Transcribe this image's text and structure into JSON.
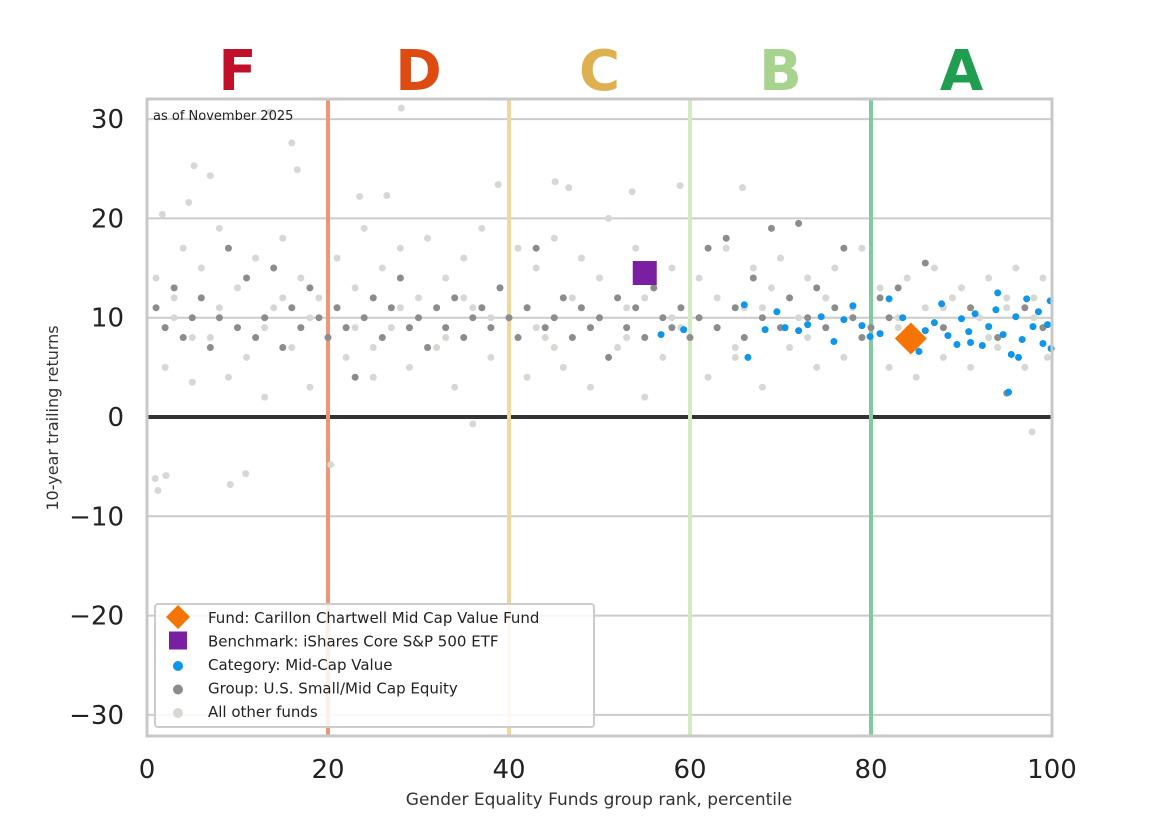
{
  "chart_data": {
    "type": "scatter",
    "title": "",
    "xlabel": "Gender Equality Funds group rank, percentile",
    "ylabel": "10-year trailing returns",
    "xlim": [
      0,
      100
    ],
    "ylim": [
      -32,
      32
    ],
    "xticks": [
      0,
      20,
      40,
      60,
      80,
      100
    ],
    "yticks": [
      -30,
      -20,
      -10,
      0,
      10,
      20,
      30
    ],
    "grid": true,
    "annotation": "as of November 2025",
    "legend_position": "bottom-left",
    "grade_bands": [
      {
        "label": "F",
        "center": 10,
        "color": "#c0102a"
      },
      {
        "label": "D",
        "center": 30,
        "color": "#dd4a12"
      },
      {
        "label": "C",
        "center": 50,
        "color": "#ddb14f"
      },
      {
        "label": "B",
        "center": 70,
        "color": "#a8d38e"
      },
      {
        "label": "A",
        "center": 90,
        "color": "#1f9e4f"
      }
    ],
    "band_lines": [
      {
        "x": 20,
        "color": "#ee9777"
      },
      {
        "x": 40,
        "color": "#f2d79c"
      },
      {
        "x": 60,
        "color": "#d4eac4"
      },
      {
        "x": 80,
        "color": "#7fcb9c"
      }
    ],
    "series": [
      {
        "name": "All other funds",
        "marker": "circle",
        "color": "#d5d9d3",
        "points": [
          [
            0.9,
            -6.2
          ],
          [
            2.1,
            -5.9
          ],
          [
            1.2,
            -7.4
          ],
          [
            9.2,
            -6.8
          ],
          [
            10.9,
            -5.7
          ],
          [
            20.3,
            -4.8
          ],
          [
            36,
            -0.7
          ],
          [
            97.8,
            -1.5
          ],
          [
            28.1,
            31.1
          ],
          [
            13.6,
            30.7
          ],
          [
            16,
            27.6
          ],
          [
            5.2,
            25.3
          ],
          [
            7,
            24.3
          ],
          [
            38.8,
            23.4
          ],
          [
            45.1,
            23.7
          ],
          [
            46.6,
            23.1
          ],
          [
            58.9,
            23.3
          ],
          [
            65.8,
            23.1
          ],
          [
            53.6,
            22.7
          ],
          [
            23.5,
            22.2
          ],
          [
            26.5,
            22.3
          ],
          [
            1.7,
            20.4
          ],
          [
            4.6,
            21.6
          ],
          [
            16.6,
            24.9
          ],
          [
            1,
            14
          ],
          [
            2,
            5
          ],
          [
            3,
            12
          ],
          [
            4,
            17
          ],
          [
            5,
            3.5
          ],
          [
            6,
            15
          ],
          [
            7,
            8
          ],
          [
            8,
            19
          ],
          [
            9,
            4
          ],
          [
            10,
            13
          ],
          [
            11,
            6
          ],
          [
            12,
            16
          ],
          [
            13,
            2
          ],
          [
            14,
            11
          ],
          [
            15,
            18
          ],
          [
            16,
            7
          ],
          [
            17,
            14
          ],
          [
            18,
            3
          ],
          [
            19,
            12
          ],
          [
            21,
            16
          ],
          [
            22,
            6
          ],
          [
            23,
            13
          ],
          [
            24,
            19
          ],
          [
            25,
            4
          ],
          [
            26,
            15
          ],
          [
            27,
            9
          ],
          [
            28,
            17
          ],
          [
            29,
            5
          ],
          [
            30,
            12
          ],
          [
            31,
            18
          ],
          [
            32,
            7
          ],
          [
            33,
            14
          ],
          [
            34,
            3
          ],
          [
            35,
            16
          ],
          [
            36,
            11
          ],
          [
            37,
            19
          ],
          [
            38,
            6
          ],
          [
            39,
            13
          ],
          [
            41,
            17
          ],
          [
            42,
            4
          ],
          [
            43,
            15
          ],
          [
            44,
            8
          ],
          [
            45,
            18
          ],
          [
            46,
            5
          ],
          [
            47,
            12
          ],
          [
            48,
            16
          ],
          [
            49,
            3
          ],
          [
            50,
            14
          ],
          [
            51,
            20
          ],
          [
            52,
            7
          ],
          [
            53,
            11
          ],
          [
            54,
            17
          ],
          [
            55,
            2
          ],
          [
            56,
            13
          ],
          [
            57,
            6
          ],
          [
            58,
            15
          ],
          [
            59,
            9
          ],
          [
            61,
            14
          ],
          [
            62,
            4
          ],
          [
            63,
            12
          ],
          [
            64,
            17
          ],
          [
            65,
            6
          ],
          [
            66,
            11
          ],
          [
            67,
            15
          ],
          [
            68,
            3
          ],
          [
            69,
            13
          ],
          [
            70,
            16
          ],
          [
            71,
            7
          ],
          [
            72,
            10
          ],
          [
            73,
            14
          ],
          [
            74,
            5
          ],
          [
            75,
            12
          ],
          [
            76,
            15
          ],
          [
            77,
            6
          ],
          [
            78,
            11
          ],
          [
            79,
            17
          ],
          [
            81,
            13
          ],
          [
            82,
            5
          ],
          [
            83,
            10
          ],
          [
            84,
            14
          ],
          [
            85,
            4
          ],
          [
            86,
            11
          ],
          [
            87,
            15
          ],
          [
            88,
            6
          ],
          [
            89,
            12
          ],
          [
            90,
            13
          ],
          [
            91,
            5
          ],
          [
            92,
            10
          ],
          [
            93,
            14
          ],
          [
            94,
            7
          ],
          [
            95,
            11
          ],
          [
            96,
            15
          ],
          [
            97,
            5
          ],
          [
            98,
            12
          ],
          [
            99,
            14
          ],
          [
            99.5,
            6
          ],
          [
            3,
            10
          ],
          [
            8,
            11
          ],
          [
            13,
            9
          ],
          [
            18,
            10
          ],
          [
            23,
            9
          ],
          [
            28,
            11
          ],
          [
            33,
            8
          ],
          [
            38,
            10
          ],
          [
            43,
            9
          ],
          [
            48,
            11
          ],
          [
            53,
            8
          ],
          [
            58,
            10
          ],
          [
            63,
            9
          ],
          [
            68,
            11
          ],
          [
            73,
            8
          ],
          [
            78,
            10
          ],
          [
            83,
            9
          ],
          [
            88,
            11
          ],
          [
            93,
            8
          ],
          [
            98,
            10
          ],
          [
            5,
            8
          ],
          [
            15,
            12
          ],
          [
            25,
            7
          ],
          [
            35,
            12
          ],
          [
            45,
            7
          ],
          [
            55,
            12
          ],
          [
            65,
            7
          ],
          [
            75,
            12
          ],
          [
            85,
            7
          ],
          [
            95,
            12
          ]
        ]
      },
      {
        "name": "Group: U.S. Small/Mid Cap Equity",
        "marker": "circle",
        "color": "#8c8c8c",
        "points": [
          [
            1,
            11
          ],
          [
            2,
            9
          ],
          [
            3,
            13
          ],
          [
            4,
            8
          ],
          [
            5,
            10
          ],
          [
            6,
            12
          ],
          [
            7,
            7
          ],
          [
            8,
            10
          ],
          [
            9,
            17
          ],
          [
            10,
            9
          ],
          [
            11,
            14
          ],
          [
            12,
            8
          ],
          [
            13,
            10
          ],
          [
            14,
            15
          ],
          [
            15,
            7
          ],
          [
            16,
            11
          ],
          [
            17,
            9
          ],
          [
            18,
            13
          ],
          [
            19,
            10
          ],
          [
            20,
            8
          ],
          [
            21,
            11
          ],
          [
            22,
            9
          ],
          [
            23,
            4
          ],
          [
            24,
            10
          ],
          [
            25,
            12
          ],
          [
            26,
            8
          ],
          [
            27,
            11
          ],
          [
            28,
            14
          ],
          [
            29,
            9
          ],
          [
            30,
            10
          ],
          [
            31,
            7
          ],
          [
            32,
            11
          ],
          [
            33,
            9
          ],
          [
            34,
            12
          ],
          [
            35,
            8
          ],
          [
            36,
            10
          ],
          [
            37,
            11
          ],
          [
            38,
            9
          ],
          [
            39,
            13
          ],
          [
            40,
            10
          ],
          [
            41,
            8
          ],
          [
            42,
            11
          ],
          [
            43,
            17
          ],
          [
            44,
            9
          ],
          [
            45,
            10
          ],
          [
            46,
            12
          ],
          [
            47,
            8
          ],
          [
            48,
            11
          ],
          [
            49,
            9
          ],
          [
            50,
            10
          ],
          [
            51,
            6
          ],
          [
            52,
            12
          ],
          [
            53,
            9
          ],
          [
            54,
            11
          ],
          [
            55,
            8
          ],
          [
            56,
            13
          ],
          [
            57,
            10
          ],
          [
            58,
            9
          ],
          [
            59,
            11
          ],
          [
            60,
            8
          ],
          [
            61,
            10
          ],
          [
            62,
            17
          ],
          [
            63,
            9
          ],
          [
            64,
            18
          ],
          [
            65,
            11
          ],
          [
            66,
            8
          ],
          [
            67,
            14
          ],
          [
            68,
            10
          ],
          [
            69,
            19
          ],
          [
            70,
            9
          ],
          [
            71,
            12
          ],
          [
            72,
            19.5
          ],
          [
            73,
            10
          ],
          [
            74,
            13
          ],
          [
            75,
            9
          ],
          [
            76,
            11
          ],
          [
            77,
            17
          ],
          [
            78,
            10
          ],
          [
            79,
            8
          ],
          [
            80,
            9
          ],
          [
            81,
            12
          ],
          [
            82,
            10
          ],
          [
            83,
            13
          ],
          [
            86,
            15.5
          ],
          [
            88,
            9
          ],
          [
            91,
            11
          ],
          [
            94,
            8
          ],
          [
            95,
            2.4
          ],
          [
            97,
            11
          ],
          [
            99,
            9
          ]
        ]
      },
      {
        "name": "Category: Mid-Cap Value",
        "marker": "circle",
        "color": "#0d96ea",
        "points": [
          [
            56.8,
            8.3
          ],
          [
            59.3,
            8.8
          ],
          [
            66,
            11.3
          ],
          [
            66.4,
            6
          ],
          [
            68.3,
            8.8
          ],
          [
            69.6,
            10.6
          ],
          [
            70.5,
            9
          ],
          [
            72,
            8.7
          ],
          [
            73,
            9.3
          ],
          [
            74.5,
            10.1
          ],
          [
            75.9,
            7.6
          ],
          [
            77,
            9.8
          ],
          [
            78,
            11.2
          ],
          [
            79,
            9.2
          ],
          [
            79.9,
            8.1
          ],
          [
            81,
            8.4
          ],
          [
            82,
            11.9
          ],
          [
            83.5,
            10
          ],
          [
            85.3,
            6.6
          ],
          [
            86,
            8.7
          ],
          [
            87,
            9.5
          ],
          [
            87.8,
            11.4
          ],
          [
            88.5,
            8.2
          ],
          [
            89.5,
            7.3
          ],
          [
            90,
            9.9
          ],
          [
            90.8,
            8.6
          ],
          [
            91.5,
            10.4
          ],
          [
            92.3,
            7.2
          ],
          [
            93,
            9.1
          ],
          [
            93.8,
            10.8
          ],
          [
            94.6,
            8.3
          ],
          [
            95.2,
            2.5
          ],
          [
            95.5,
            6.3
          ],
          [
            96,
            10.1
          ],
          [
            96.7,
            7.8
          ],
          [
            97.2,
            11.9
          ],
          [
            97.9,
            9.1
          ],
          [
            98.5,
            10.6
          ],
          [
            99,
            7.4
          ],
          [
            99.5,
            9.3
          ],
          [
            99.8,
            11.7
          ],
          [
            99.9,
            6.9
          ],
          [
            94,
            12.5
          ],
          [
            96.3,
            6
          ],
          [
            91,
            7.5
          ]
        ]
      },
      {
        "name": "Benchmark: iShares Core S&P 500 ETF",
        "marker": "square",
        "color": "#7b1fa2",
        "points": [
          [
            55.0,
            14.5
          ]
        ]
      },
      {
        "name": "Fund: Carillon Chartwell Mid Cap Value Fund",
        "marker": "diamond",
        "color": "#f57404",
        "points": [
          [
            84.4,
            7.9
          ]
        ]
      }
    ],
    "legend": [
      "Fund: Carillon Chartwell Mid Cap Value Fund",
      "Benchmark: iShares Core S&P 500 ETF",
      "Category: Mid-Cap Value",
      "Group: U.S. Small/Mid Cap Equity",
      "All other funds"
    ]
  }
}
